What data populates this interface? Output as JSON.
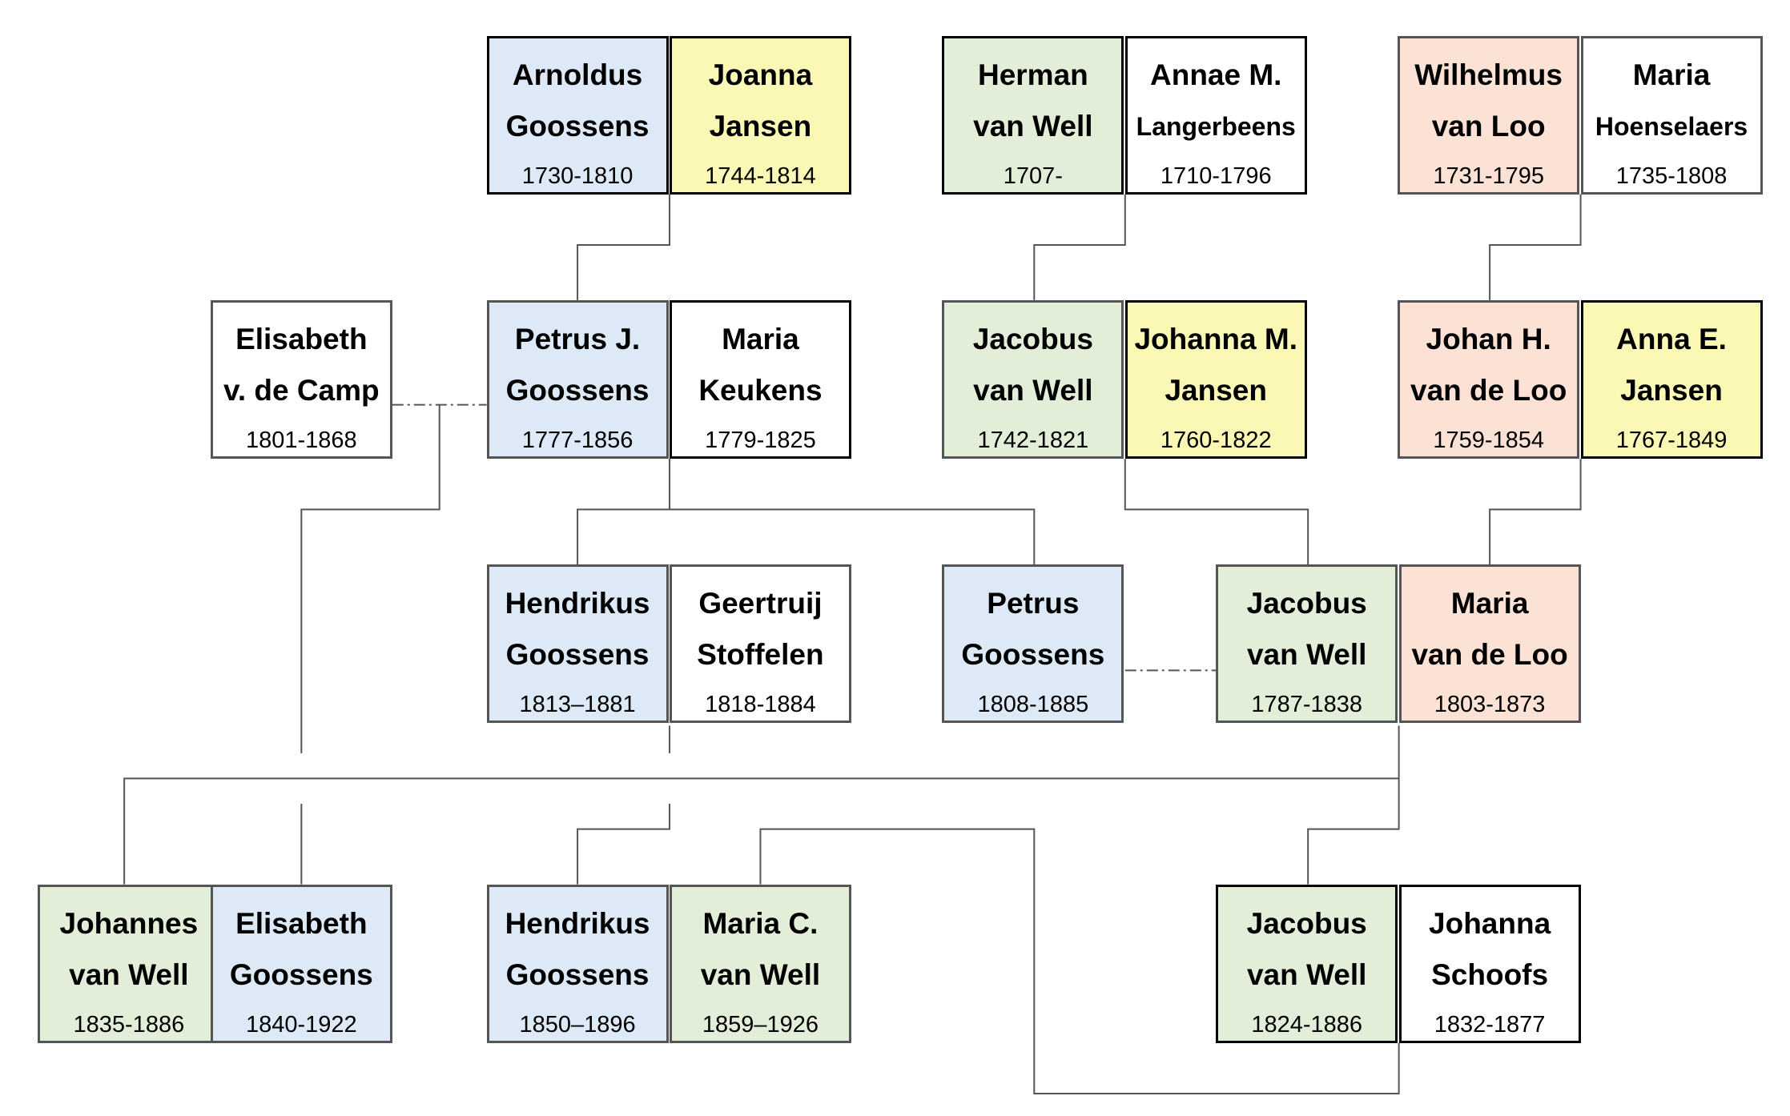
{
  "colors": {
    "blue": "#dde9f6",
    "yellow": "#fbf8b6",
    "green": "#e3eed9",
    "peach": "#fbe2d5",
    "white": "#ffffff",
    "line": "#555555",
    "border": "#555555",
    "border_strong": "#000000"
  },
  "persons": [
    {
      "id": "arnoldus-goossens",
      "line1": "Arnoldus",
      "line2": "Goossens",
      "years": "1730-1810",
      "color": "blue"
    },
    {
      "id": "joanna-jansen",
      "line1": "Joanna",
      "line2": "Jansen",
      "years": "1744-1814",
      "color": "yellow"
    },
    {
      "id": "herman-van-well",
      "line1": "Herman",
      "line2": "van Well",
      "years": "1707-",
      "color": "green"
    },
    {
      "id": "annae-langerbeens",
      "line1": "Annae M.",
      "line2": "Langerbeens",
      "years": "1710-1796",
      "color": "white"
    },
    {
      "id": "wilhelmus-van-loo",
      "line1": "Wilhelmus",
      "line2": "van Loo",
      "years": "1731-1795",
      "color": "peach"
    },
    {
      "id": "maria-hoenselaers",
      "line1": "Maria",
      "line2": "Hoenselaers",
      "years": "1735-1808",
      "color": "white"
    },
    {
      "id": "elisabeth-v-de-camp",
      "line1": "Elisabeth",
      "line2": "v. de Camp",
      "years": "1801-1868",
      "color": "white"
    },
    {
      "id": "petrus-j-goossens",
      "line1": "Petrus J.",
      "line2": "Goossens",
      "years": "1777-1856",
      "color": "blue"
    },
    {
      "id": "maria-keukens",
      "line1": "Maria",
      "line2": "Keukens",
      "years": "1779-1825",
      "color": "white"
    },
    {
      "id": "jacobus-van-well-1742",
      "line1": "Jacobus",
      "line2": "van Well",
      "years": "1742-1821",
      "color": "green"
    },
    {
      "id": "johanna-m-jansen",
      "line1": "Johanna M.",
      "line2": "Jansen",
      "years": "1760-1822",
      "color": "yellow"
    },
    {
      "id": "johan-h-van-de-loo",
      "line1": "Johan H.",
      "line2": "van de Loo",
      "years": "1759-1854",
      "color": "peach"
    },
    {
      "id": "anna-e-jansen",
      "line1": "Anna E.",
      "line2": "Jansen",
      "years": "1767-1849",
      "color": "yellow"
    },
    {
      "id": "hendrikus-goossens-1813",
      "line1": "Hendrikus",
      "line2": "Goossens",
      "years": "1813–1881",
      "color": "blue"
    },
    {
      "id": "geertruij-stoffelen",
      "line1": "Geertruij",
      "line2": "Stoffelen",
      "years": "1818-1884",
      "color": "white"
    },
    {
      "id": "petrus-goossens-1808",
      "line1": "Petrus",
      "line2": "Goossens",
      "years": "1808-1885",
      "color": "blue"
    },
    {
      "id": "jacobus-van-well-1787",
      "line1": "Jacobus",
      "line2": "van Well",
      "years": "1787-1838",
      "color": "green"
    },
    {
      "id": "maria-van-de-loo",
      "line1": "Maria",
      "line2": "van de Loo",
      "years": "1803-1873",
      "color": "peach"
    },
    {
      "id": "johannes-van-well",
      "line1": "Johannes",
      "line2": "van Well",
      "years": "1835-1886",
      "color": "green"
    },
    {
      "id": "elisabeth-goossens",
      "line1": "Elisabeth",
      "line2": "Goossens",
      "years": "1840-1922",
      "color": "blue"
    },
    {
      "id": "hendrikus-goossens-1850",
      "line1": "Hendrikus",
      "line2": "Goossens",
      "years": "1850–1896",
      "color": "blue"
    },
    {
      "id": "maria-c-van-well",
      "line1": "Maria C.",
      "line2": "van Well",
      "years": "1859–1926",
      "color": "green"
    },
    {
      "id": "jacobus-van-well-1824",
      "line1": "Jacobus",
      "line2": "van Well",
      "years": "1824-1886",
      "color": "green"
    },
    {
      "id": "johanna-schoofs",
      "line1": "Johanna",
      "line2": "Schoofs",
      "years": "1832-1877",
      "color": "white"
    }
  ]
}
